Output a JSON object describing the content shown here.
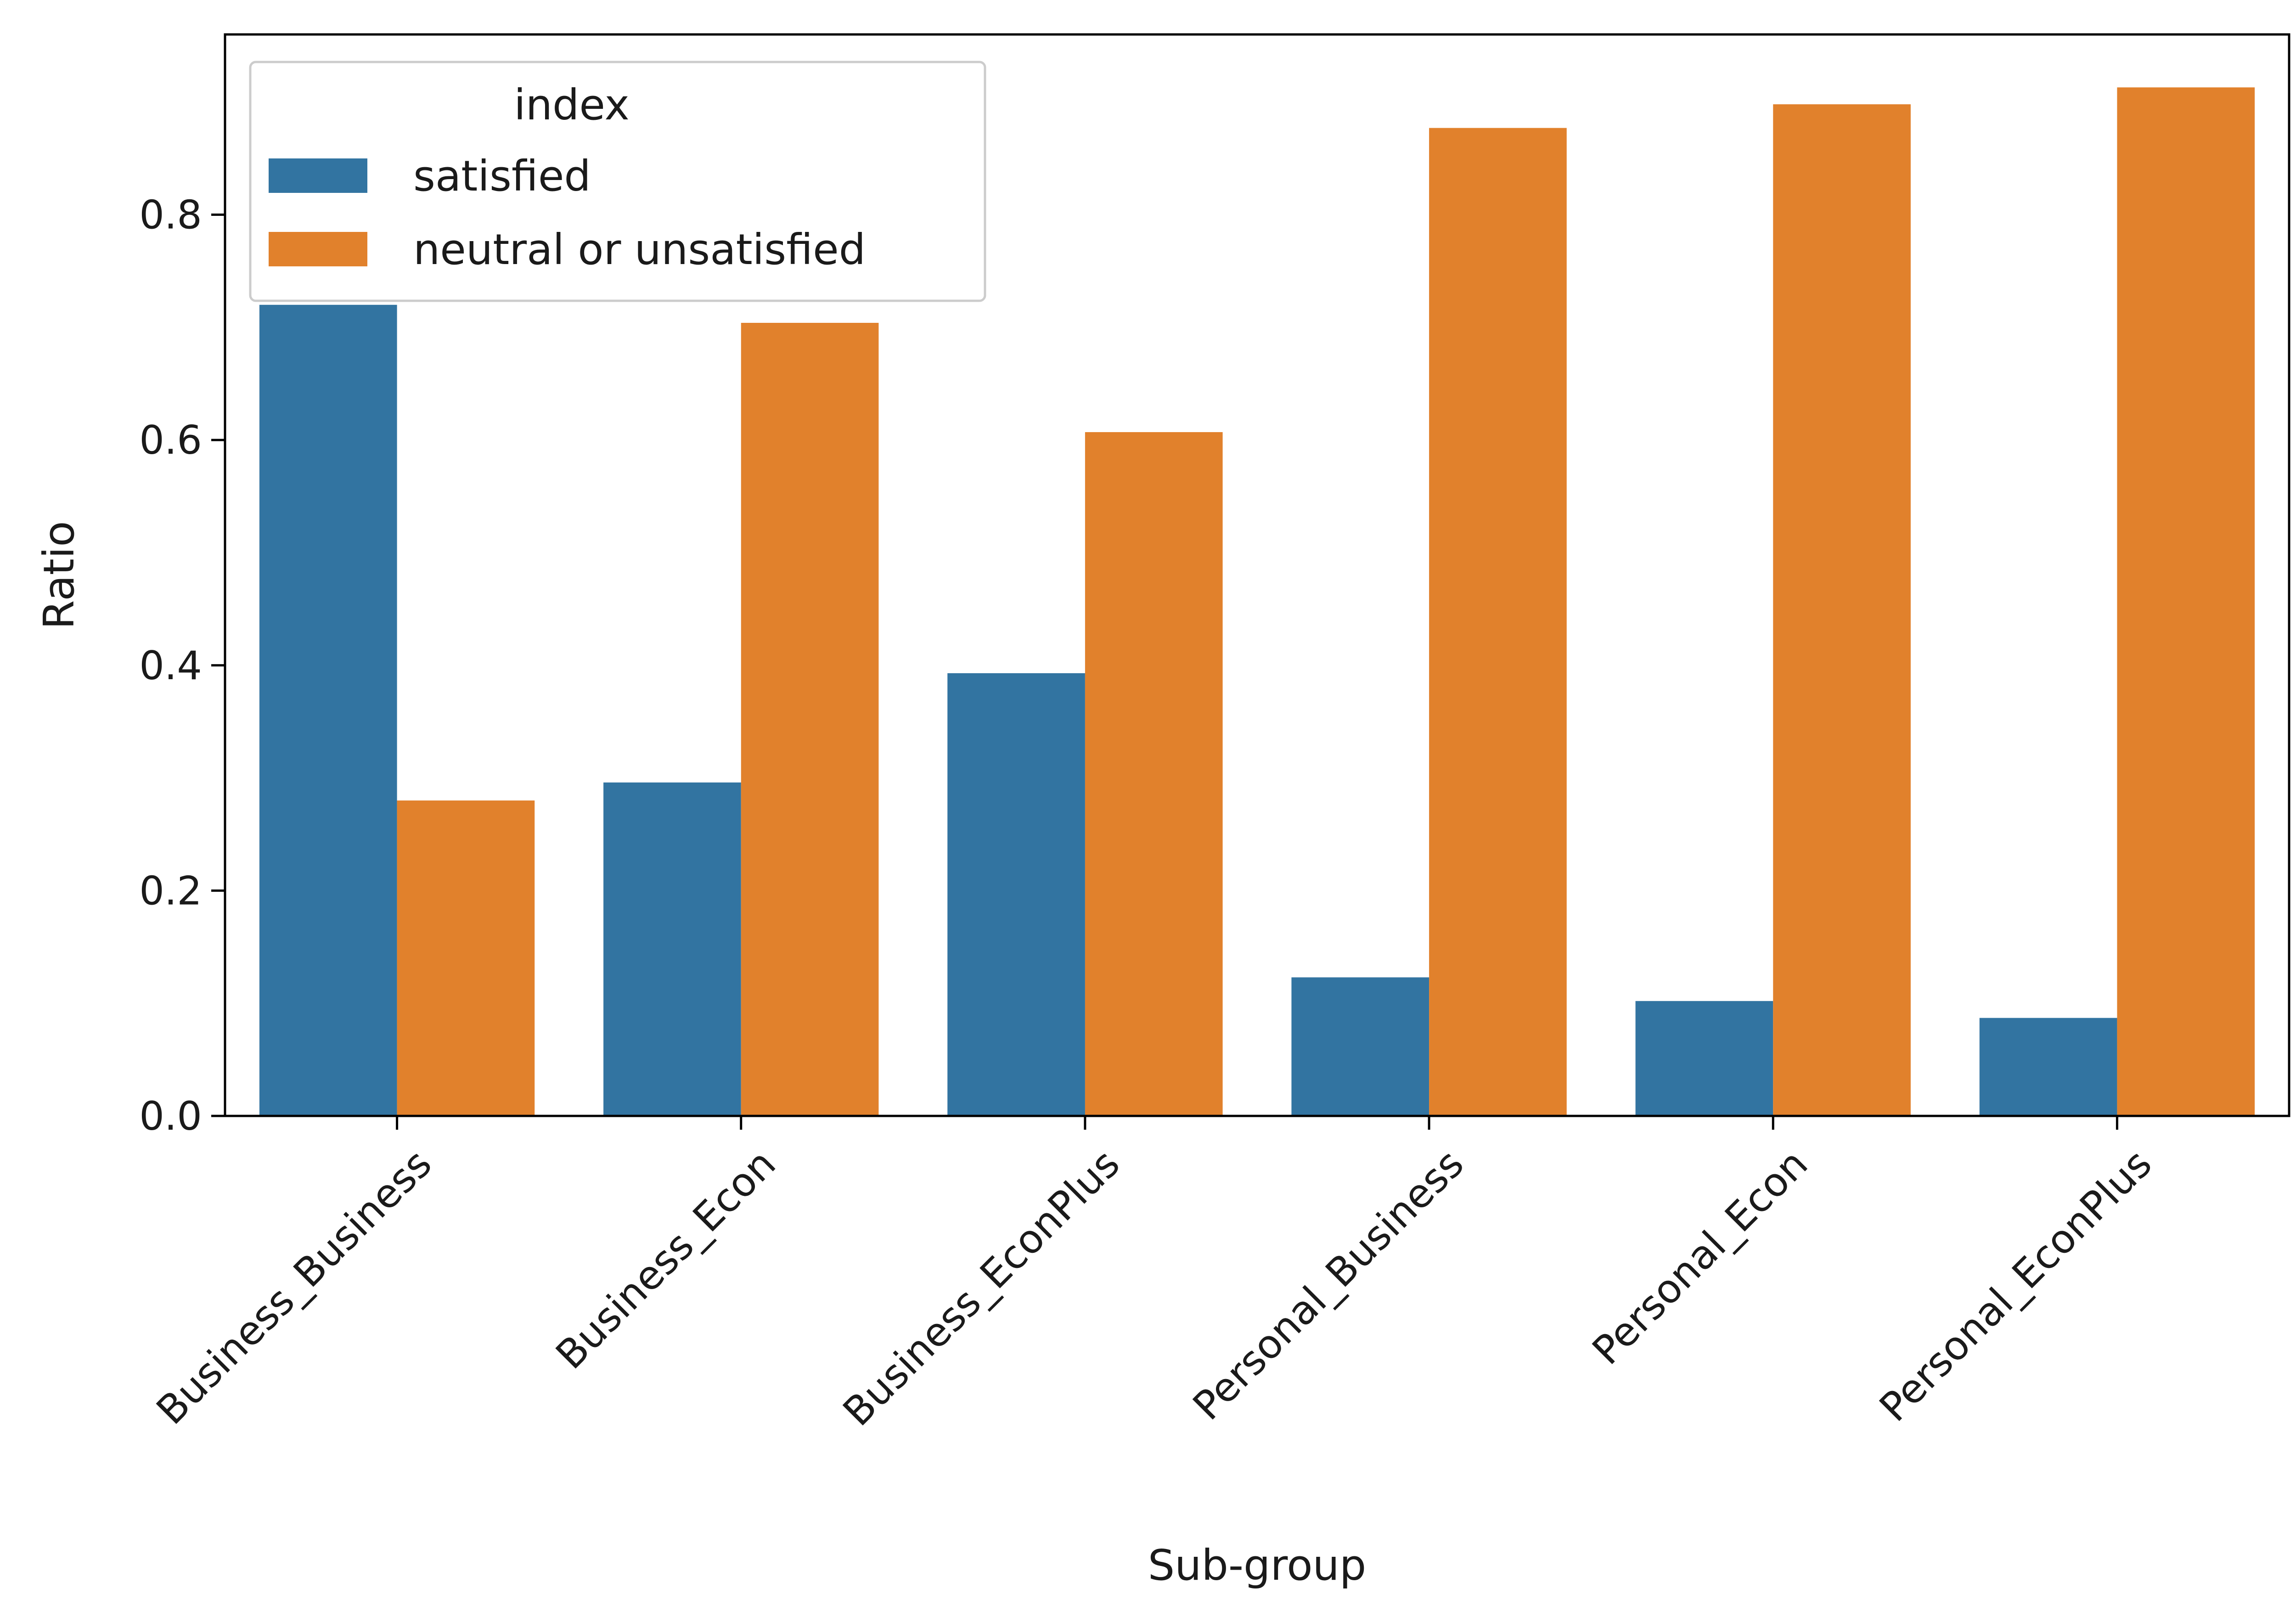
{
  "chart_data": {
    "type": "bar",
    "title": "",
    "xlabel": "Sub-group",
    "ylabel": "Ratio",
    "ylim": [
      0,
      0.96
    ],
    "yticks": [
      0.0,
      0.2,
      0.4,
      0.6,
      0.8
    ],
    "ytick_labels": [
      "0.0",
      "0.2",
      "0.4",
      "0.6",
      "0.8"
    ],
    "categories": [
      "Business_Business",
      "Business_Econ",
      "Business_EconPlus",
      "Personal_Business",
      "Personal_Econ",
      "Personal_EconPlus"
    ],
    "series": [
      {
        "name": "satisfied",
        "color": "#3274a1",
        "values": [
          0.72,
          0.296,
          0.393,
          0.123,
          0.102,
          0.087
        ]
      },
      {
        "name": "neutral or unsatisfied",
        "color": "#e1812c",
        "values": [
          0.28,
          0.704,
          0.607,
          0.877,
          0.898,
          0.913
        ]
      }
    ],
    "legend": {
      "title": "index",
      "placement": "top-left"
    },
    "grid": false,
    "xtick_rotation": 45
  }
}
